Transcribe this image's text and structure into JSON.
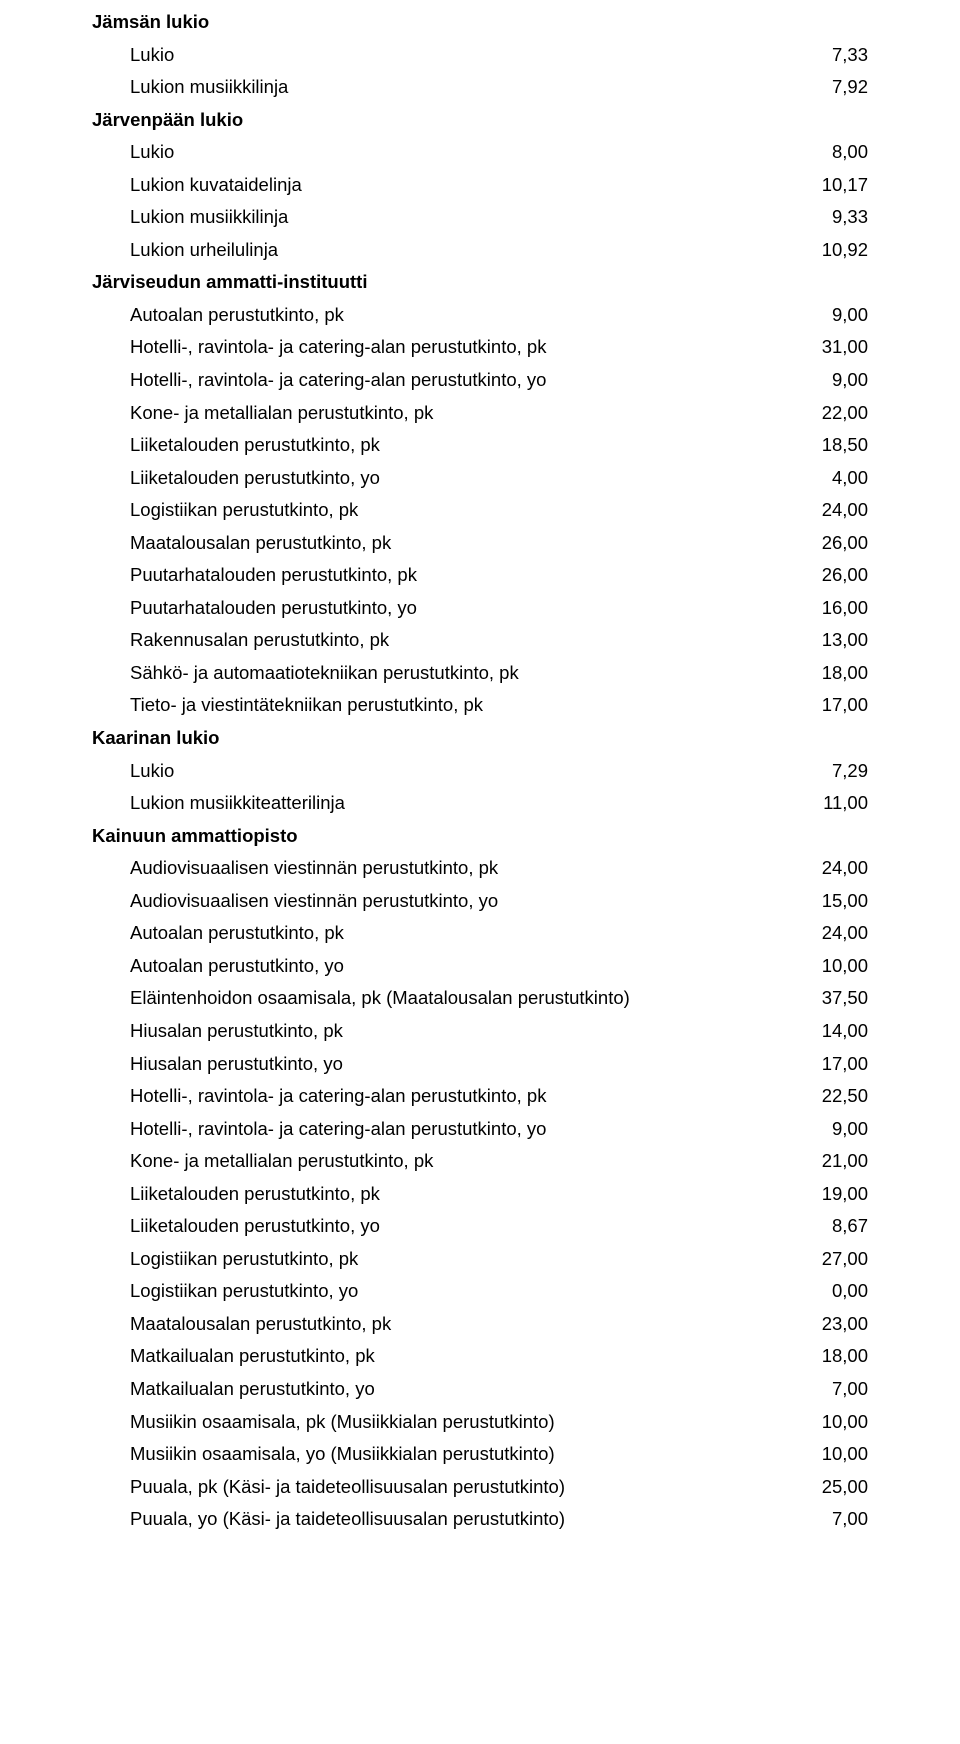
{
  "sections": [
    {
      "title": "Jämsän lukio",
      "rows": [
        {
          "label": "Lukio",
          "value": "7,33"
        },
        {
          "label": "Lukion musiikkilinja",
          "value": "7,92"
        }
      ]
    },
    {
      "title": "Järvenpään lukio",
      "rows": [
        {
          "label": "Lukio",
          "value": "8,00"
        },
        {
          "label": "Lukion kuvataidelinja",
          "value": "10,17"
        },
        {
          "label": "Lukion musiikkilinja",
          "value": "9,33"
        },
        {
          "label": "Lukion urheilulinja",
          "value": "10,92"
        }
      ]
    },
    {
      "title": "Järviseudun ammatti-instituutti",
      "rows": [
        {
          "label": "Autoalan perustutkinto, pk",
          "value": "9,00"
        },
        {
          "label": "Hotelli-, ravintola- ja catering-alan perustutkinto, pk",
          "value": "31,00"
        },
        {
          "label": "Hotelli-, ravintola- ja catering-alan perustutkinto, yo",
          "value": "9,00"
        },
        {
          "label": "Kone- ja metallialan perustutkinto, pk",
          "value": "22,00"
        },
        {
          "label": "Liiketalouden perustutkinto, pk",
          "value": "18,50"
        },
        {
          "label": "Liiketalouden perustutkinto, yo",
          "value": "4,00"
        },
        {
          "label": "Logistiikan perustutkinto, pk",
          "value": "24,00"
        },
        {
          "label": "Maatalousalan perustutkinto, pk",
          "value": "26,00"
        },
        {
          "label": "Puutarhatalouden perustutkinto, pk",
          "value": "26,00"
        },
        {
          "label": "Puutarhatalouden perustutkinto, yo",
          "value": "16,00"
        },
        {
          "label": "Rakennusalan perustutkinto, pk",
          "value": "13,00"
        },
        {
          "label": "Sähkö- ja automaatiotekniikan perustutkinto, pk",
          "value": "18,00"
        },
        {
          "label": "Tieto- ja viestintätekniikan perustutkinto, pk",
          "value": "17,00"
        }
      ]
    },
    {
      "title": "Kaarinan lukio",
      "rows": [
        {
          "label": "Lukio",
          "value": "7,29"
        },
        {
          "label": "Lukion musiikkiteatterilinja",
          "value": "11,00"
        }
      ]
    },
    {
      "title": "Kainuun ammattiopisto",
      "rows": [
        {
          "label": "Audiovisuaalisen viestinnän perustutkinto, pk",
          "value": "24,00"
        },
        {
          "label": "Audiovisuaalisen viestinnän perustutkinto, yo",
          "value": "15,00"
        },
        {
          "label": "Autoalan perustutkinto, pk",
          "value": "24,00"
        },
        {
          "label": "Autoalan perustutkinto, yo",
          "value": "10,00"
        },
        {
          "label": "Eläintenhoidon osaamisala, pk (Maatalousalan perustutkinto)",
          "value": "37,50"
        },
        {
          "label": "Hiusalan perustutkinto, pk",
          "value": "14,00"
        },
        {
          "label": "Hiusalan perustutkinto, yo",
          "value": "17,00"
        },
        {
          "label": "Hotelli-, ravintola- ja catering-alan perustutkinto, pk",
          "value": "22,50"
        },
        {
          "label": "Hotelli-, ravintola- ja catering-alan perustutkinto, yo",
          "value": "9,00"
        },
        {
          "label": "Kone- ja metallialan perustutkinto, pk",
          "value": "21,00"
        },
        {
          "label": "Liiketalouden perustutkinto, pk",
          "value": "19,00"
        },
        {
          "label": "Liiketalouden perustutkinto, yo",
          "value": "8,67"
        },
        {
          "label": "Logistiikan perustutkinto, pk",
          "value": "27,00"
        },
        {
          "label": "Logistiikan perustutkinto, yo",
          "value": "0,00"
        },
        {
          "label": "Maatalousalan perustutkinto, pk",
          "value": "23,00"
        },
        {
          "label": "Matkailualan perustutkinto, pk",
          "value": "18,00"
        },
        {
          "label": "Matkailualan perustutkinto, yo",
          "value": "7,00"
        },
        {
          "label": "Musiikin osaamisala, pk (Musiikkialan perustutkinto)",
          "value": "10,00"
        },
        {
          "label": "Musiikin osaamisala, yo (Musiikkialan perustutkinto)",
          "value": "10,00"
        },
        {
          "label": "Puuala, pk (Käsi- ja taideteollisuusalan perustutkinto)",
          "value": "25,00"
        },
        {
          "label": "Puuala, yo (Käsi- ja taideteollisuusalan perustutkinto)",
          "value": "7,00"
        }
      ]
    }
  ]
}
